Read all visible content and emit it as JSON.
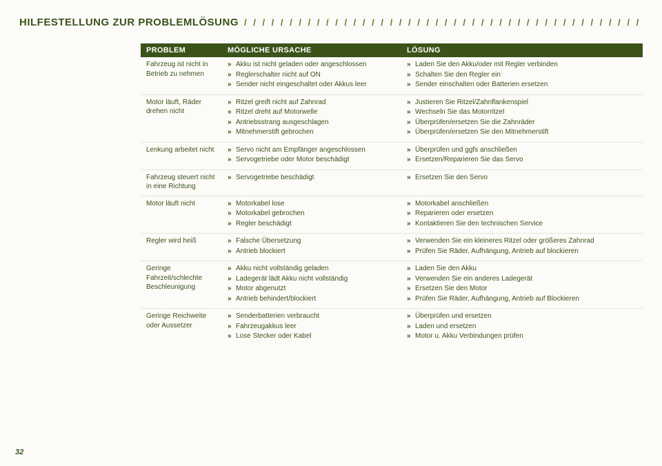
{
  "page": {
    "title": "HILFESTELLUNG ZUR PROBLEMLÖSUNG",
    "slashes": "/ / / / / / / / / / / / / / / / / / / / / / / / / / / / / / / / / / / / / / / / / / / / / / / / / / / / / / / / / / / / / / / / / / / / / / /",
    "page_number": "32"
  },
  "colors": {
    "dark_olive": "#3b5219",
    "page_bg": "#fcfbf8"
  },
  "table": {
    "headers": {
      "c0": "PROBLEM",
      "c1": "MÖGLICHE URSACHE",
      "c2": "LÖSUNG"
    },
    "rows": [
      {
        "problem": "Fahrzeug ist nicht in Betrieb zu nehmen",
        "cause": [
          "Akku ist nicht geladen oder angeschlossen",
          "Reglerschalter nicht auf ON",
          "Sender nicht eingeschaltet oder Akkus leer"
        ],
        "solution": [
          "Laden Sie den Akku/oder mit Regler verbinden",
          "Schalten Sie den Regler ein",
          "Sender einschalten oder Batterien ersetzen"
        ]
      },
      {
        "problem": "Motor läuft, Räder drehen nicht",
        "cause": [
          "Ritzel greift nicht auf Zahnrad",
          "Ritzel dreht auf Motorwelle",
          "Antriebsstrang ausgeschlagen",
          "Mitnehmerstift gebrochen"
        ],
        "solution": [
          "Justieren Sie Ritzel/Zahnflankenspiel",
          "Wechseln Sie das Motorritzel",
          "Überprüfen/ersetzen Sie die Zahnräder",
          "Überprüfen/ersetzen Sie den Mitnehmerstift"
        ]
      },
      {
        "problem": "Lenkung arbeitet nicht",
        "cause": [
          "Servo nicht am Empfänger angeschlossen",
          "Servogetriebe oder Motor beschädigt"
        ],
        "solution": [
          "Überprüfen und ggfs anschließen",
          "Ersetzen/Reparieren Sie das Servo"
        ]
      },
      {
        "problem": "Fahrzeug steuert nicht in eine Richtung",
        "cause": [
          "Servogetriebe beschädigt"
        ],
        "solution": [
          "Ersetzen Sie den Servo"
        ]
      },
      {
        "problem": "Motor läuft nicht",
        "cause": [
          "Motorkabel lose",
          "Motorkabel gebrochen",
          "Regler beschädigt"
        ],
        "solution": [
          "Motorkabel anschließen",
          "Reparieren oder ersetzen",
          "Kontaktieren Sie den technischen Service"
        ]
      },
      {
        "problem": "Regler wird heiß",
        "cause": [
          "Falsche Übersetzung",
          "Antrieb blockiert"
        ],
        "solution": [
          "Verwenden Sie ein kleineres Ritzel oder größeres Zahnrad",
          "Prüfen Sie Räder, Aufhängung, Antrieb auf blockieren"
        ]
      },
      {
        "problem": "Geringe Fahrzeit/schlechte Beschleunigung",
        "cause": [
          "Akku nicht vollständig geladen",
          "Ladegerät lädt Akku nicht vollständig",
          "Motor abgenutzt",
          "Antrieb behindert/blockiert"
        ],
        "solution": [
          "Laden Sie den Akku",
          "Verwenden Sie ein anderes Ladegerät",
          "Ersetzen Sie den Motor",
          "Prüfen Sie Räder, Aufhängung, Antrieb auf Blockieren"
        ]
      },
      {
        "problem": "Geringe Reichweite oder Aussetzer",
        "cause": [
          "Senderbatterien verbraucht",
          "Fahrzeugakkus leer",
          "Lose Stecker oder Kabel"
        ],
        "solution": [
          "Überprüfen und ersetzen",
          "Laden und ersetzen",
          "Motor u. Akku Verbindungen prüfen"
        ]
      }
    ]
  }
}
